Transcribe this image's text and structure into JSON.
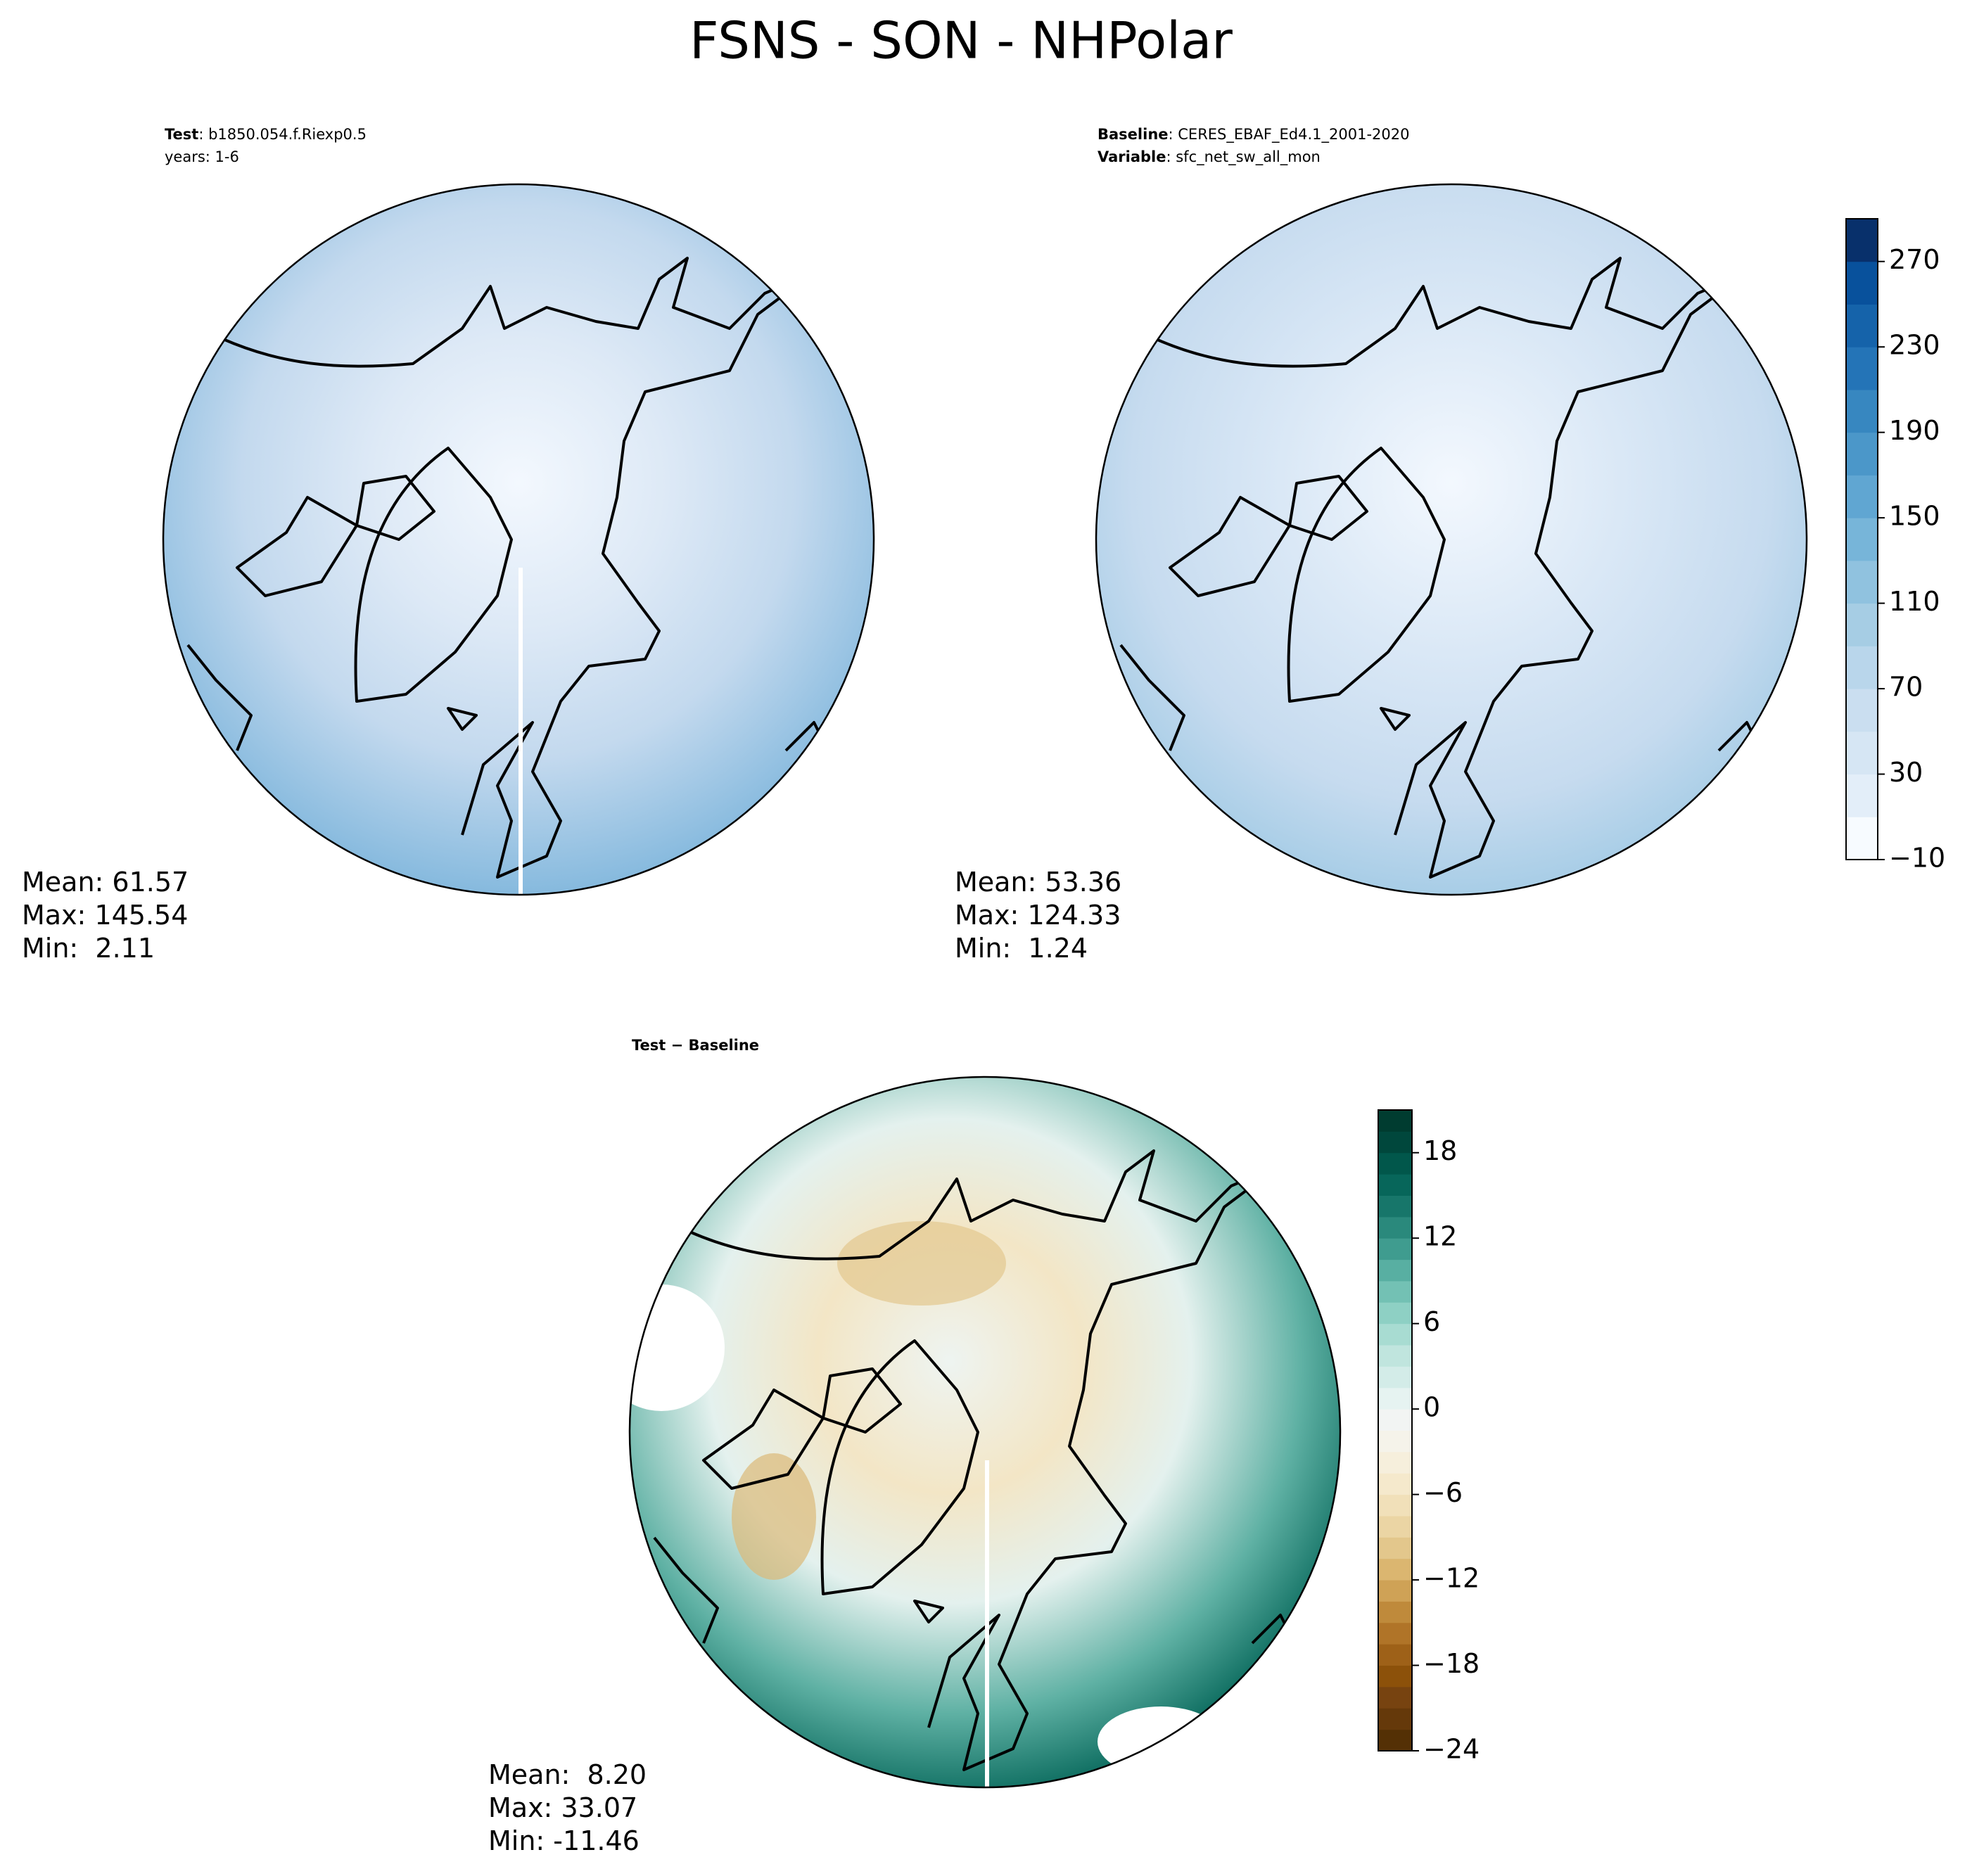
{
  "title": "FSNS - SON - NHPolar",
  "panels": [
    {
      "header": [
        {
          "bold": "Test",
          "rest": ": b1850.054.f.Riexp0.5"
        },
        {
          "bold": "",
          "rest": "years: 1-6"
        }
      ],
      "stats": [
        "Mean: 61.57",
        "Max: 145.54",
        "Min:  2.11"
      ],
      "map": "test"
    },
    {
      "header": [
        {
          "bold": "Baseline",
          "rest": ": CERES_EBAF_Ed4.1_2001-2020"
        },
        {
          "bold": "Variable",
          "rest": ": sfc_net_sw_all_mon"
        }
      ],
      "stats": [
        "Mean: 53.36",
        "Max: 124.33",
        "Min:  1.24"
      ],
      "map": "baseline"
    },
    {
      "header": [
        {
          "bold": "Test − Baseline",
          "rest": ""
        }
      ],
      "stats": [
        "Mean:  8.20",
        "Max: 33.07",
        "Min: -11.46"
      ],
      "map": "diff"
    }
  ],
  "colorbars": [
    {
      "lim": [
        -10,
        290
      ],
      "ticks": [
        {
          "value": -10,
          "label": "−10"
        },
        30,
        70,
        110,
        150,
        190,
        230,
        270
      ],
      "colors": [
        "#f7fbff",
        "#e3eef9",
        "#d6e6f4",
        "#cadef0",
        "#b9d6eb",
        "#a6cde4",
        "#90c2df",
        "#77b5d9",
        "#60a6d2",
        "#4b97c9",
        "#3787c0",
        "#2474b7",
        "#1563aa",
        "#08519c",
        "#08306b"
      ]
    },
    {
      "lim": [
        -24,
        21
      ],
      "ticks": [
        {
          "value": -24,
          "label": "−24"
        },
        {
          "value": -18,
          "label": "−18"
        },
        {
          "value": -12,
          "label": "−12"
        },
        {
          "value": -6,
          "label": "−6"
        },
        0,
        6,
        12,
        18
      ],
      "colors": [
        "#543005",
        "#65390a",
        "#774310",
        "#8c510a",
        "#9e6118",
        "#b07428",
        "#bf8a3b",
        "#cfa256",
        "#dbb670",
        "#e3c78c",
        "#ebd5a4",
        "#f1e0b9",
        "#f5e9cc",
        "#f6efdc",
        "#f5f3ea",
        "#f2f4f3",
        "#e6f3f1",
        "#d3ece8",
        "#c0e5de",
        "#a8dcd2",
        "#8ed0c4",
        "#73c1b4",
        "#58afa2",
        "#3f9c8f",
        "#2a897c",
        "#17766a",
        "#07665a",
        "#01574b",
        "#00473c",
        "#003c30"
      ]
    }
  ]
}
